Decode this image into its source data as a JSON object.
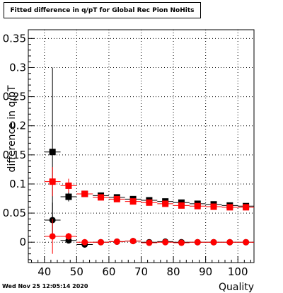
{
  "title": "Fitted difference in q/pT for Global Rec Pion NoHits",
  "timestamp": "Wed Nov 25 12:05:14 2020",
  "chart_data": {
    "type": "scatter",
    "title": "Fitted difference in q/pT for Global Rec Pion NoHits",
    "xlabel": "Quality",
    "ylabel": "difference in q/pT",
    "xlim": [
      35,
      105
    ],
    "ylim": [
      -0.035,
      0.365
    ],
    "xticks": [
      40,
      50,
      60,
      70,
      80,
      90,
      100
    ],
    "yticks": [
      0,
      0.05,
      0.1,
      0.15,
      0.2,
      0.25,
      0.3,
      0.35
    ],
    "ytick_labels": [
      "0",
      "0.05",
      "0.1",
      "0.15",
      "0.2",
      "0.25",
      "0.3",
      "0.35"
    ],
    "grid": true,
    "series": [
      {
        "color": "#000000",
        "marker": "square",
        "points": [
          {
            "x": 42.5,
            "y": 0.155,
            "xerr": 2.5,
            "yerr": 0.145
          },
          {
            "x": 47.5,
            "y": 0.078,
            "xerr": 2.5,
            "yerr": 0.008
          },
          {
            "x": 52.5,
            "y": 0.083,
            "xerr": 2.5,
            "yerr": 0.004
          },
          {
            "x": 57.5,
            "y": 0.08,
            "xerr": 2.5,
            "yerr": 0.003
          },
          {
            "x": 62.5,
            "y": 0.077,
            "xerr": 2.5,
            "yerr": 0.003
          },
          {
            "x": 67.5,
            "y": 0.074,
            "xerr": 2.5,
            "yerr": 0.003
          },
          {
            "x": 72.5,
            "y": 0.072,
            "xerr": 2.5,
            "yerr": 0.003
          },
          {
            "x": 77.5,
            "y": 0.07,
            "xerr": 2.5,
            "yerr": 0.003
          },
          {
            "x": 82.5,
            "y": 0.068,
            "xerr": 2.5,
            "yerr": 0.003
          },
          {
            "x": 87.5,
            "y": 0.066,
            "xerr": 2.5,
            "yerr": 0.003
          },
          {
            "x": 92.5,
            "y": 0.065,
            "xerr": 2.5,
            "yerr": 0.003
          },
          {
            "x": 97.5,
            "y": 0.063,
            "xerr": 2.5,
            "yerr": 0.003
          },
          {
            "x": 102.5,
            "y": 0.062,
            "xerr": 2.5,
            "yerr": 0.003
          }
        ]
      },
      {
        "color": "#000000",
        "marker": "circle",
        "points": [
          {
            "x": 42.5,
            "y": 0.038,
            "xerr": 2.5,
            "yerr": 0.03
          },
          {
            "x": 47.5,
            "y": 0.003,
            "xerr": 2.5,
            "yerr": 0.004
          },
          {
            "x": 52.5,
            "y": -0.004,
            "xerr": 2.5,
            "yerr": 0.003
          },
          {
            "x": 57.5,
            "y": 0.0,
            "xerr": 2.5,
            "yerr": 0.002
          },
          {
            "x": 62.5,
            "y": 0.001,
            "xerr": 2.5,
            "yerr": 0.002
          },
          {
            "x": 67.5,
            "y": 0.002,
            "xerr": 2.5,
            "yerr": 0.002
          },
          {
            "x": 72.5,
            "y": 0.0,
            "xerr": 2.5,
            "yerr": 0.002
          },
          {
            "x": 77.5,
            "y": 0.001,
            "xerr": 2.5,
            "yerr": 0.002
          },
          {
            "x": 82.5,
            "y": 0.0,
            "xerr": 2.5,
            "yerr": 0.002
          },
          {
            "x": 87.5,
            "y": 0.0,
            "xerr": 2.5,
            "yerr": 0.002
          },
          {
            "x": 92.5,
            "y": 0.0,
            "xerr": 2.5,
            "yerr": 0.002
          },
          {
            "x": 97.5,
            "y": 0.0,
            "xerr": 2.5,
            "yerr": 0.002
          },
          {
            "x": 102.5,
            "y": 0.0,
            "xerr": 2.5,
            "yerr": 0.002
          }
        ]
      },
      {
        "color": "#ff0000",
        "marker": "square",
        "points": [
          {
            "x": 42.5,
            "y": 0.104,
            "xerr": 2.5,
            "yerr": 0.025
          },
          {
            "x": 47.5,
            "y": 0.097,
            "xerr": 2.5,
            "yerr": 0.012
          },
          {
            "x": 52.5,
            "y": 0.083,
            "xerr": 2.5,
            "yerr": 0.005
          },
          {
            "x": 57.5,
            "y": 0.077,
            "xerr": 2.5,
            "yerr": 0.004
          },
          {
            "x": 62.5,
            "y": 0.074,
            "xerr": 2.5,
            "yerr": 0.003
          },
          {
            "x": 67.5,
            "y": 0.07,
            "xerr": 2.5,
            "yerr": 0.003
          },
          {
            "x": 72.5,
            "y": 0.068,
            "xerr": 2.5,
            "yerr": 0.003
          },
          {
            "x": 77.5,
            "y": 0.066,
            "xerr": 2.5,
            "yerr": 0.003
          },
          {
            "x": 82.5,
            "y": 0.063,
            "xerr": 2.5,
            "yerr": 0.003
          },
          {
            "x": 87.5,
            "y": 0.062,
            "xerr": 2.5,
            "yerr": 0.003
          },
          {
            "x": 92.5,
            "y": 0.061,
            "xerr": 2.5,
            "yerr": 0.003
          },
          {
            "x": 97.5,
            "y": 0.06,
            "xerr": 2.5,
            "yerr": 0.003
          },
          {
            "x": 102.5,
            "y": 0.06,
            "xerr": 2.5,
            "yerr": 0.003
          }
        ]
      },
      {
        "color": "#ff0000",
        "marker": "circle",
        "points": [
          {
            "x": 42.5,
            "y": 0.01,
            "xerr": 2.5,
            "yerr": 0.03
          },
          {
            "x": 47.5,
            "y": 0.01,
            "xerr": 2.5,
            "yerr": 0.006
          },
          {
            "x": 52.5,
            "y": 0.0,
            "xerr": 2.5,
            "yerr": 0.003
          },
          {
            "x": 57.5,
            "y": 0.0,
            "xerr": 2.5,
            "yerr": 0.002
          },
          {
            "x": 62.5,
            "y": 0.001,
            "xerr": 2.5,
            "yerr": 0.002
          },
          {
            "x": 67.5,
            "y": 0.002,
            "xerr": 2.5,
            "yerr": 0.002
          },
          {
            "x": 72.5,
            "y": -0.001,
            "xerr": 2.5,
            "yerr": 0.002
          },
          {
            "x": 77.5,
            "y": 0.0,
            "xerr": 2.5,
            "yerr": 0.002
          },
          {
            "x": 82.5,
            "y": -0.001,
            "xerr": 2.5,
            "yerr": 0.002
          },
          {
            "x": 87.5,
            "y": 0.0,
            "xerr": 2.5,
            "yerr": 0.002
          },
          {
            "x": 92.5,
            "y": 0.0,
            "xerr": 2.5,
            "yerr": 0.002
          },
          {
            "x": 97.5,
            "y": 0.0,
            "xerr": 2.5,
            "yerr": 0.002
          },
          {
            "x": 102.5,
            "y": 0.0,
            "xerr": 2.5,
            "yerr": 0.002
          }
        ]
      }
    ]
  }
}
